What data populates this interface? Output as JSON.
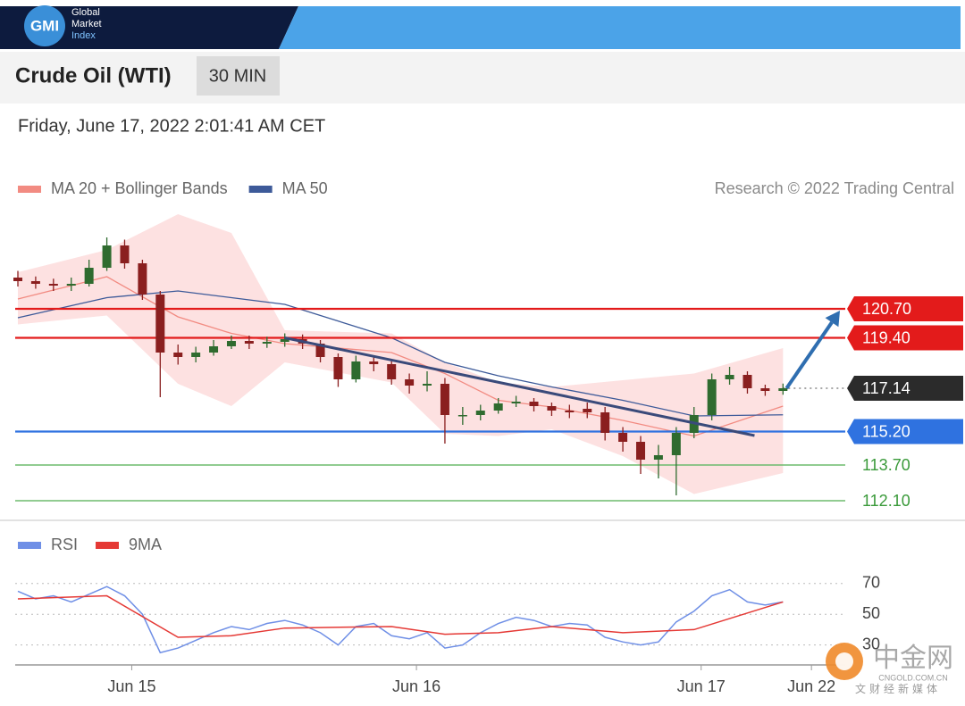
{
  "header": {
    "logo": "GMI",
    "brand": [
      "Global",
      "Market",
      "Index"
    ]
  },
  "title": "Crude Oil (WTI)",
  "timeframe": "30 MIN",
  "date": "Friday, June 17, 2022 2:01:41 AM CET",
  "watermark": {
    "name": "中金网",
    "site": "CNGOLD.COM.CN",
    "tagline": "文财经新媒体"
  },
  "chart_data": [
    {
      "type": "candlestick",
      "legend": "top-left",
      "source": "Research © 2022 Trading Central",
      "xlim": [
        0,
        46.5
      ],
      "ylim": [
        111.3,
        124.9
      ],
      "candles": {
        "up_color": "#2f6b2f",
        "down_color": "#8a1f1f",
        "open": [
          122.1,
          121.94,
          121.82,
          121.74,
          121.82,
          122.54,
          123.54,
          122.74,
          121.34,
          118.74,
          118.54,
          118.74,
          119.02,
          119.26,
          119.14,
          119.22,
          119.34,
          119.14,
          118.54,
          117.54,
          118.34,
          118.22,
          117.54,
          117.26,
          117.34,
          115.94,
          115.94,
          116.14,
          116.46,
          116.54,
          116.34,
          116.14,
          116.22,
          116.06,
          115.14,
          114.74,
          113.94,
          114.14,
          115.14,
          115.94,
          117.54,
          117.74,
          117.14,
          117.02
        ],
        "high": [
          122.4,
          122.15,
          122.05,
          122.1,
          122.9,
          123.9,
          123.8,
          122.9,
          121.5,
          119.1,
          119.0,
          119.3,
          119.5,
          119.5,
          119.45,
          119.6,
          119.55,
          119.3,
          118.7,
          118.6,
          118.6,
          118.4,
          117.8,
          117.9,
          117.6,
          116.3,
          116.4,
          116.7,
          116.8,
          116.7,
          116.5,
          116.4,
          116.5,
          116.3,
          115.4,
          115.0,
          114.6,
          115.4,
          116.3,
          117.8,
          118.1,
          117.9,
          117.3,
          117.35
        ],
        "low": [
          121.7,
          121.6,
          121.5,
          121.5,
          121.7,
          122.4,
          122.5,
          121.1,
          116.74,
          118.2,
          118.3,
          118.6,
          118.9,
          118.9,
          118.95,
          119.0,
          118.9,
          118.3,
          117.2,
          117.4,
          117.9,
          117.3,
          116.9,
          117.0,
          114.66,
          115.5,
          115.7,
          116.0,
          116.3,
          116.1,
          115.9,
          115.8,
          115.8,
          114.8,
          114.3,
          113.3,
          113.1,
          112.34,
          114.9,
          115.7,
          117.3,
          116.9,
          116.8,
          116.85
        ],
        "close": [
          121.94,
          121.82,
          121.74,
          121.82,
          122.54,
          123.54,
          122.74,
          121.34,
          118.74,
          118.54,
          118.74,
          119.02,
          119.26,
          119.14,
          119.22,
          119.34,
          119.14,
          118.54,
          117.54,
          118.34,
          118.22,
          117.54,
          117.26,
          117.34,
          115.94,
          115.94,
          116.14,
          116.46,
          116.54,
          116.34,
          116.14,
          116.06,
          116.06,
          115.14,
          114.74,
          113.94,
          114.14,
          115.14,
          115.94,
          117.54,
          117.74,
          117.14,
          117.02,
          117.14
        ]
      },
      "series": [
        {
          "name": "MA 20 + Bollinger Bands",
          "color": "#f28b82",
          "band_color": "#fde1e1",
          "x": [
            0,
            5,
            9,
            12,
            15,
            21,
            24,
            27,
            30,
            34,
            38,
            43
          ],
          "values": [
            121.14,
            122.14,
            120.34,
            119.6,
            119.14,
            118.74,
            117.8,
            116.6,
            116.3,
            115.7,
            115.0,
            116.34
          ],
          "upper": [
            122.34,
            123.34,
            124.94,
            124.1,
            119.74,
            119.6,
            118.3,
            117.4,
            117.2,
            117.5,
            117.8,
            118.94
          ],
          "lower": [
            120.0,
            120.4,
            117.34,
            116.34,
            118.3,
            117.4,
            115.1,
            115.0,
            115.3,
            114.1,
            112.4,
            113.34
          ]
        },
        {
          "name": "MA 50",
          "color": "#3d5a99",
          "x": [
            0,
            5,
            9,
            12,
            15,
            21,
            24,
            27,
            30,
            34,
            38,
            43
          ],
          "values": [
            120.3,
            121.2,
            121.5,
            121.2,
            120.9,
            119.4,
            118.3,
            117.7,
            117.2,
            116.6,
            115.9,
            115.95
          ]
        }
      ],
      "levels": [
        {
          "value": 120.7,
          "label": "120.70",
          "color": "#e31b1b",
          "line": "solid",
          "label_style": "box"
        },
        {
          "value": 119.4,
          "label": "119.40",
          "color": "#e31b1b",
          "line": "solid",
          "label_style": "box"
        },
        {
          "value": 117.14,
          "color": "#2b2b2b",
          "line": "dotted",
          "label_style": "box"
        },
        {
          "value": 115.2,
          "label": "115.20",
          "color": "#2f72e0",
          "line": "solid",
          "label_style": "box"
        },
        {
          "value": 113.7,
          "label": "113.70",
          "color": "#6dbb6d",
          "line": "solid",
          "label_style": "text"
        },
        {
          "value": 112.1,
          "label": "112.10",
          "color": "#6dbb6d",
          "line": "solid",
          "label_style": "text"
        }
      ],
      "trendline": {
        "x": [
          15,
          41.4
        ],
        "values": [
          119.4,
          115.02
        ],
        "color": "#3a4a7a"
      },
      "arrow": {
        "x": [
          43.2,
          46.2
        ],
        "values": [
          117.14,
          120.62
        ],
        "color": "#2f6eb0"
      }
    },
    {
      "type": "line",
      "legend": "top-left",
      "xlim": [
        0,
        46.5
      ],
      "ylim": [
        17,
        78
      ],
      "yticks": [
        30,
        50,
        70
      ],
      "grid": "dotted",
      "xticks": [
        {
          "value": 6.4,
          "label": "Jun 15"
        },
        {
          "value": 22.4,
          "label": "Jun 16"
        },
        {
          "value": 38.4,
          "label": "Jun 17"
        },
        {
          "value": 44.6,
          "label": "Jun 22"
        }
      ],
      "series": [
        {
          "name": "RSI",
          "color": "#6f8fe6",
          "values": [
            65,
            60,
            62,
            58,
            63,
            68,
            62,
            50,
            25,
            28,
            33,
            38,
            42,
            40,
            44,
            46,
            43,
            38,
            30,
            42,
            44,
            36,
            34,
            38,
            28,
            30,
            38,
            44,
            48,
            46,
            42,
            44,
            43,
            35,
            32,
            30,
            32,
            45,
            52,
            62,
            66,
            58,
            56,
            58
          ]
        },
        {
          "name": "9MA",
          "color": "#e53935",
          "x": [
            0,
            5,
            9,
            12,
            15,
            21,
            24,
            27,
            30,
            34,
            38,
            43
          ],
          "values": [
            60,
            62,
            35,
            36,
            41,
            42,
            37,
            38,
            42,
            38,
            40,
            58
          ]
        }
      ]
    }
  ]
}
